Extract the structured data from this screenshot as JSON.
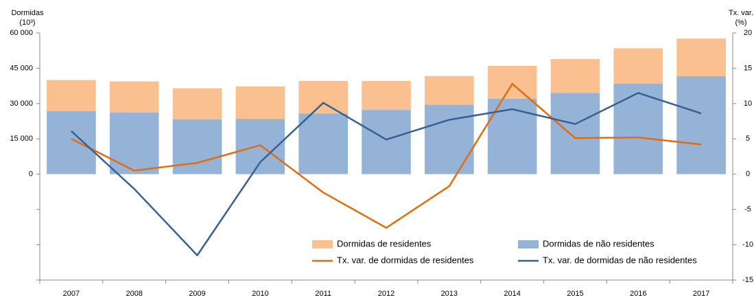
{
  "chart_data": {
    "type": "bar",
    "y_label": "Dormidas",
    "y_label_unit": "(10³)",
    "y2_label": "Tx. var.",
    "y2_label_unit": "(%)",
    "categories": [
      "2007",
      "2008",
      "2009",
      "2010",
      "2011",
      "2012",
      "2013",
      "2014",
      "2015",
      "2016",
      "2017"
    ],
    "series": [
      {
        "name": "Dormidas de não residentes",
        "type": "bar",
        "color": "#95b3d7",
        "values": [
          26800,
          26200,
          23300,
          23500,
          25800,
          27300,
          29500,
          32000,
          34500,
          38500,
          41600
        ]
      },
      {
        "name": "Dormidas de residentes",
        "type": "bar",
        "color": "#fac090",
        "values": [
          13200,
          13200,
          13200,
          13800,
          13800,
          12300,
          12200,
          14000,
          14400,
          15000,
          16000
        ]
      },
      {
        "name": "Tx. var. de dormidas de residentes",
        "type": "line",
        "axis": "y2",
        "color": "#e46c0a",
        "values": [
          5.0,
          0.5,
          1.6,
          4.1,
          -2.6,
          -7.6,
          -1.7,
          12.8,
          5.1,
          5.2,
          4.2
        ]
      },
      {
        "name": "Tx. var. de dormidas de não residentes",
        "type": "line",
        "axis": "y2",
        "color": "#376092",
        "values": [
          6.1,
          -2.1,
          -11.5,
          1.7,
          10.1,
          4.9,
          7.7,
          9.2,
          7.1,
          11.5,
          8.6
        ]
      }
    ],
    "ylim": [
      -45000,
      60000
    ],
    "yticks": [
      0,
      {
        "value": 15000,
        "label": "15 000"
      },
      {
        "value": 30000,
        "label": "30 000"
      },
      {
        "value": 45000,
        "label": "45 000"
      },
      {
        "value": 60000,
        "label": "60 000"
      }
    ],
    "y2lim": [
      -15,
      20
    ],
    "y2ticks": [
      -15,
      -10,
      -5,
      0,
      5,
      10,
      15,
      20
    ],
    "grid": false
  }
}
